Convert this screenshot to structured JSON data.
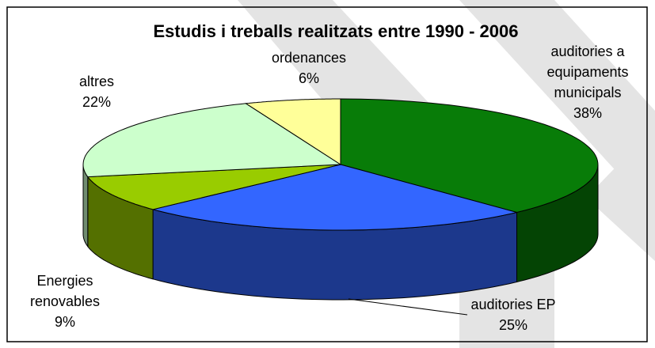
{
  "chart_data": {
    "type": "pie",
    "title": "Estudis i treballs realitzats entre 1990 - 2006",
    "categories": [
      "auditories a equipaments municipals",
      "auditories EP",
      "Energies renovables",
      "altres",
      "ordenances"
    ],
    "values": [
      38,
      25,
      9,
      22,
      6
    ],
    "value_labels": [
      "38%",
      "25%",
      "9%",
      "22%",
      "6%"
    ],
    "colors": [
      "#087c08",
      "#3366ff",
      "#99cc00",
      "#ccffcc",
      "#ffff99"
    ]
  }
}
